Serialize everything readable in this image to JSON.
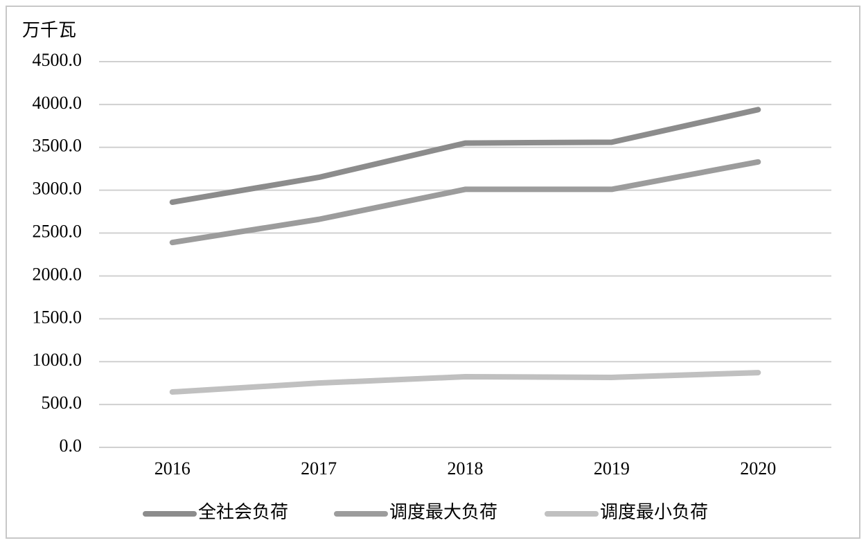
{
  "chart_data": {
    "type": "line",
    "y_label": "万千瓦",
    "categories": [
      "2016",
      "2017",
      "2018",
      "2019",
      "2020"
    ],
    "series": [
      {
        "name": "全社会负荷",
        "color": "#8c8c8c",
        "values": [
          2860,
          3150,
          3550,
          3560,
          3940
        ]
      },
      {
        "name": "调度最大负荷",
        "color": "#9c9c9c",
        "values": [
          2390,
          2660,
          3010,
          3010,
          3330
        ]
      },
      {
        "name": "调度最小负荷",
        "color": "#c0c0c0",
        "values": [
          646,
          750,
          824,
          816,
          872
        ]
      }
    ],
    "ylim": [
      0,
      4500
    ],
    "yticks": [
      {
        "value": 0,
        "label": "0.0"
      },
      {
        "value": 500,
        "label": "500.0"
      },
      {
        "value": 1000,
        "label": "1000.0"
      },
      {
        "value": 1500,
        "label": "1500.0"
      },
      {
        "value": 2000,
        "label": "2000.0"
      },
      {
        "value": 2500,
        "label": "2500.0"
      },
      {
        "value": 3000,
        "label": "3000.0"
      },
      {
        "value": 3500,
        "label": "3500.0"
      },
      {
        "value": 4000,
        "label": "4000.0"
      },
      {
        "value": 4500,
        "label": "4500.0"
      }
    ],
    "grid": true,
    "legend": "bottom"
  }
}
